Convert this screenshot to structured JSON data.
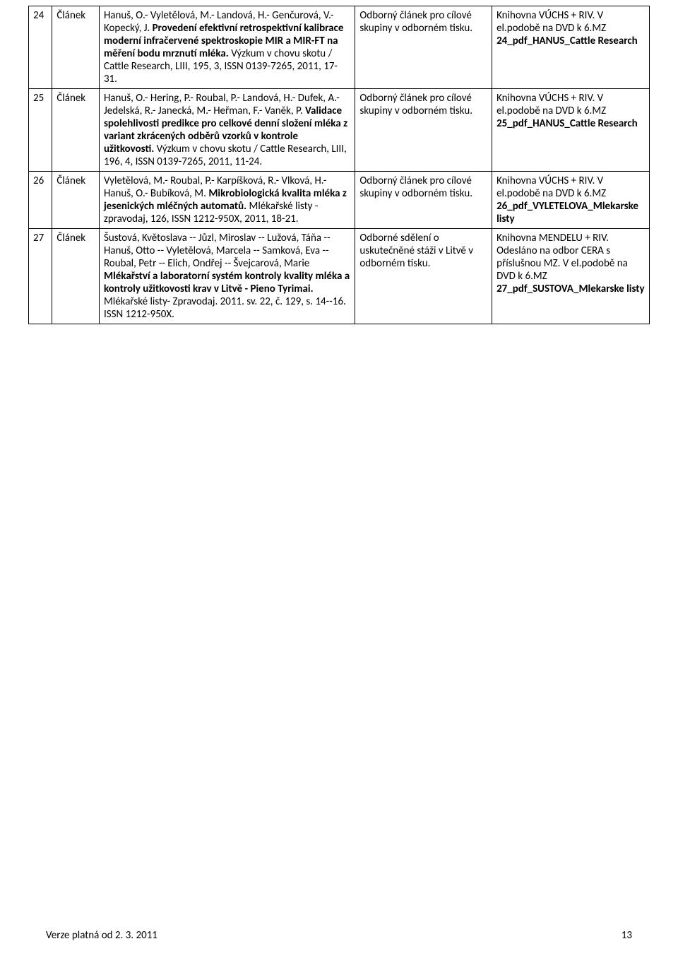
{
  "rows": [
    {
      "num": "24",
      "type": "Článek",
      "cit_pre": "Hanuš, O.- Vyletělová, M.- Landová, H.- Genčurová, V.- Kopecký, J. ",
      "cit_bold": "Provedení efektivní retrospektivní kalibrace moderní infračervené spektroskopie MIR a MIR-FT na měření bodu mrznutí mléka.",
      "cit_post": " Výzkum v chovu skotu / Cattle Research, LIII, 195, 3, ISSN 0139-7265, 2011, 17-31.",
      "anno": "Odborný článek pro cílové skupiny v odborném tisku.",
      "lib_pre": "Knihovna VÚCHS + RIV. V el.podobě na DVD k 6.MZ ",
      "lib_bold": "24_pdf_HANUS_Cattle Research",
      "lib_post": ""
    },
    {
      "num": "25",
      "type": "Článek",
      "cit_pre": "Hanuš, O.- Hering, P.- Roubal, P.- Landová, H.- Dufek, A.- Jedelská, R.- Janecká, M.- Heřman, F.- Vaněk, P. ",
      "cit_bold": "Validace spolehlivosti predikce pro celkové denní složení mléka z variant zkrácených odběrů vzorků v kontrole užitkovosti.",
      "cit_post": " Výzkum v chovu skotu / Cattle Research, LIII, 196, 4, ISSN 0139-7265, 2011, 11-24.",
      "anno": "Odborný článek pro cílové skupiny v odborném tisku.",
      "lib_pre": "Knihovna VÚCHS + RIV. V el.podobě na DVD k 6.MZ ",
      "lib_bold": "25_pdf_HANUS_Cattle Research",
      "lib_post": ""
    },
    {
      "num": "26",
      "type": "Článek",
      "cit_pre": "Vyletělová, M.- Roubal, P.- Karpíšková, R.- Vlková, H.- Hanuš, O.- Bubíková, M. ",
      "cit_bold": "Mikrobiologická kvalita mléka z jesenických mléčných automatů.",
      "cit_post": " Mlékařské listy - zpravodaj, 126, ISSN 1212-950X, 2011, 18-21.",
      "anno": "Odborný článek pro cílové skupiny v odborném tisku.",
      "lib_pre": "Knihovna VÚCHS + RIV. V el.podobě na DVD k 6.MZ ",
      "lib_bold": "26_pdf_VYLETELOVA_Mlekarske listy",
      "lib_post": ""
    },
    {
      "num": "27",
      "type": "Článek",
      "cit_pre": "Šustová, Květoslava -- Jůzl, Miroslav -- Lužová, Táňa -- Hanuš, Otto -- Vyletělová, Marcela -- Samková, Eva -- Roubal, Petr -- Elich, Ondřej -- Švejcarová, Marie ",
      "cit_bold": "Mlékařství a laboratorní systém kontroly kvality mléka a kontroly užitkovosti krav v Litvě - Pieno Tyrimai.",
      "cit_post": " Mlékařské listy- Zpravodaj. 2011. sv. 22, č. 129, s. 14--16. ISSN 1212-950X.",
      "anno": "Odborné sdělení o uskutečněné stáži v Litvě v odborném tisku.",
      "lib_pre": "Knihovna MENDELU + RIV. Odesláno na odbor CERA s příslušnou MZ. V el.podobě na DVD k 6.MZ ",
      "lib_bold": "27_pdf_SUSTOVA_Mlekarske listy",
      "lib_post": ""
    }
  ],
  "footer_left": "Verze platná od 2. 3. 2011",
  "footer_page": "13"
}
